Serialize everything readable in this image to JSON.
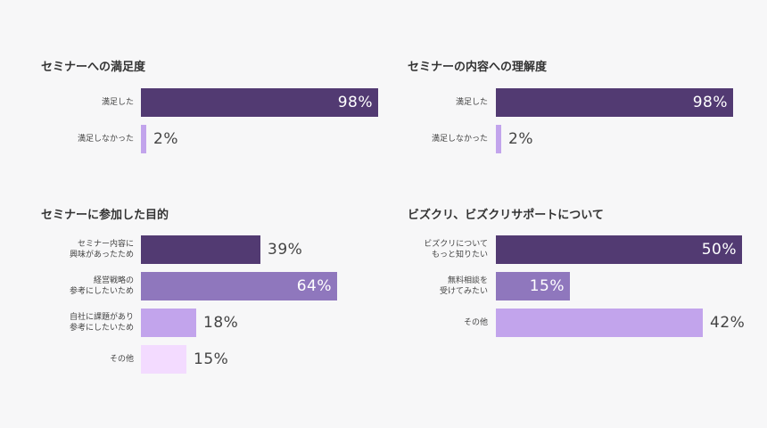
{
  "colors": {
    "dark": "#523a72",
    "mid": "#8f77bd",
    "light": "#c2a4ec",
    "pale": "#f3dbff",
    "text_dark": "#444444",
    "text_light": "#ffffff"
  },
  "chart_data": [
    {
      "type": "bar",
      "orientation": "horizontal",
      "title": "セミナーへの満足度",
      "categories": [
        "満足した",
        "満足しなかった"
      ],
      "values": [
        98,
        2
      ],
      "value_labels": [
        "98%",
        "2%"
      ],
      "xlim": [
        0,
        100
      ]
    },
    {
      "type": "bar",
      "orientation": "horizontal",
      "title": "セミナーの内容への理解度",
      "categories": [
        "満足した",
        "満足しなかった"
      ],
      "values": [
        98,
        2
      ],
      "value_labels": [
        "98%",
        "2%"
      ],
      "xlim": [
        0,
        100
      ]
    },
    {
      "type": "bar",
      "orientation": "horizontal",
      "title": "セミナーに参加した目的",
      "categories": [
        "セミナー内容に\n興味があったため",
        "経営戦略の\n参考にしたいため",
        "自社に課題があり\n参考にしたいため",
        "その他"
      ],
      "values": [
        39,
        64,
        18,
        15
      ],
      "value_labels": [
        "39%",
        "64%",
        "18%",
        "15%"
      ],
      "xlim": [
        0,
        100
      ]
    },
    {
      "type": "bar",
      "orientation": "horizontal",
      "title": "ビズクリ、ビズクリサポートについて",
      "categories": [
        "ビズクリについて\nもっと知りたい",
        "無料相談を\n受けてみたい",
        "その他"
      ],
      "values": [
        50,
        15,
        42
      ],
      "value_labels": [
        "50%",
        "15%",
        "42%"
      ],
      "xlim": [
        0,
        50
      ]
    }
  ]
}
